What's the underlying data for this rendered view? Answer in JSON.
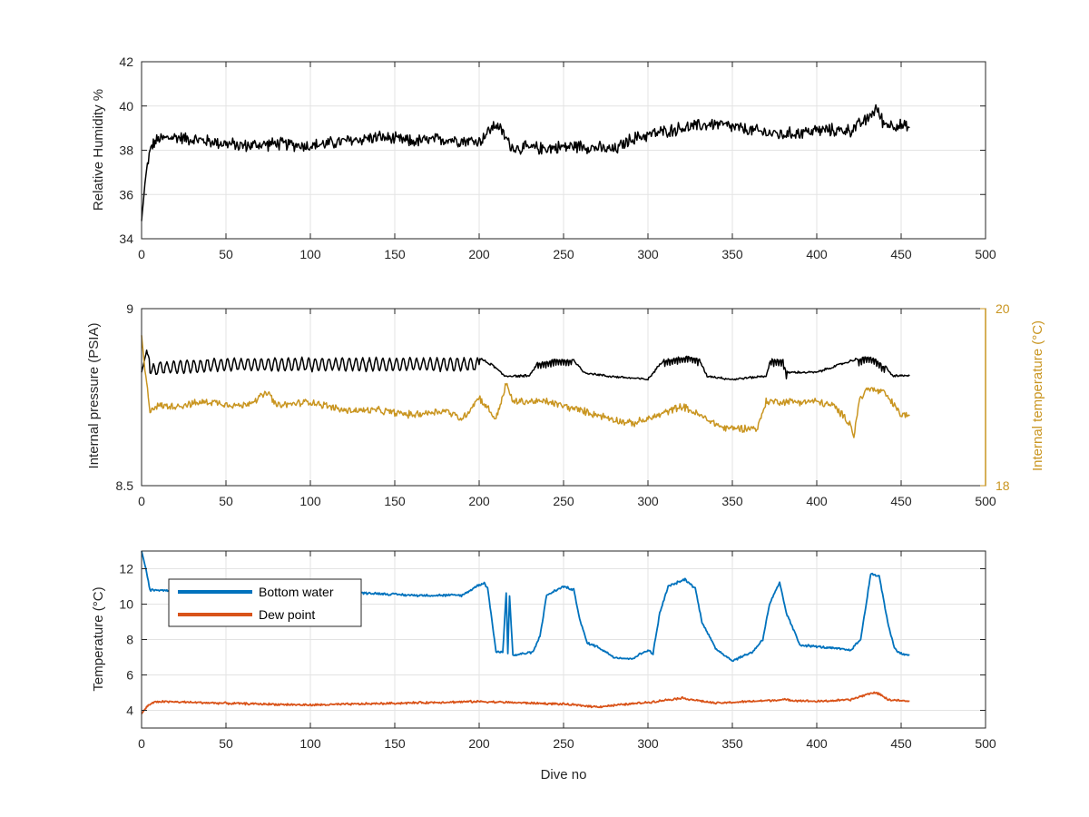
{
  "chart_data": [
    {
      "type": "line",
      "id": "humidity",
      "title": "",
      "xlabel": "",
      "ylabel": "Relative Humidity %",
      "xlim": [
        0,
        500
      ],
      "ylim": [
        34,
        42
      ],
      "xticks": [
        0,
        50,
        100,
        150,
        200,
        250,
        300,
        350,
        400,
        450,
        500
      ],
      "yticks": [
        34,
        36,
        38,
        40,
        42
      ],
      "grid": true,
      "series": [
        {
          "color": "#000000",
          "noise": 0.35,
          "x": [
            0,
            2,
            4,
            6,
            10,
            20,
            40,
            60,
            80,
            100,
            120,
            140,
            160,
            180,
            200,
            210,
            220,
            240,
            260,
            280,
            290,
            300,
            320,
            340,
            360,
            380,
            400,
            420,
            430,
            435,
            440,
            450,
            455
          ],
          "y": [
            34.8,
            36.5,
            37.6,
            38.2,
            38.5,
            38.6,
            38.4,
            38.2,
            38.3,
            38.2,
            38.4,
            38.6,
            38.4,
            38.5,
            38.4,
            39.2,
            38.1,
            38.1,
            38.2,
            38.0,
            38.5,
            38.7,
            39.0,
            39.2,
            38.9,
            38.7,
            38.9,
            38.9,
            39.4,
            39.9,
            39.2,
            39.1,
            39.0
          ]
        }
      ]
    },
    {
      "type": "line",
      "id": "pressure-temperature",
      "title": "",
      "xlabel": "",
      "ylabel": "Internal pressure (PSIA)",
      "ylabel_right": "Internal temperature (°C)",
      "xlim": [
        0,
        500
      ],
      "ylim": [
        8.5,
        9
      ],
      "ylim_right": [
        18,
        20
      ],
      "xticks": [
        0,
        50,
        100,
        150,
        200,
        250,
        300,
        350,
        400,
        450,
        500
      ],
      "yticks": [
        8.5,
        9
      ],
      "yticks_right": [
        18,
        20
      ],
      "grid": true,
      "series": [
        {
          "axis": "left",
          "color": "#000000",
          "noise": 0.004,
          "osc": [
            [
              5,
              200,
              0.035,
              4
            ],
            [
              235,
              255,
              0.02,
              1.5
            ],
            [
              310,
              330,
              0.02,
              1.5
            ],
            [
              373,
              382,
              0.02,
              1.5
            ],
            [
              425,
              440,
              0.02,
              1.5
            ]
          ],
          "x": [
            0,
            3,
            6,
            10,
            50,
            100,
            150,
            190,
            200,
            208,
            215,
            230,
            235,
            245,
            255,
            262,
            275,
            300,
            310,
            325,
            330,
            335,
            350,
            370,
            373,
            380,
            382,
            400,
            425,
            430,
            435,
            440,
            445,
            455
          ],
          "y": [
            8.82,
            8.88,
            8.84,
            8.85,
            8.86,
            8.86,
            8.86,
            8.86,
            8.86,
            8.84,
            8.81,
            8.81,
            8.85,
            8.86,
            8.86,
            8.82,
            8.81,
            8.8,
            8.86,
            8.87,
            8.86,
            8.81,
            8.8,
            8.81,
            8.86,
            8.86,
            8.82,
            8.82,
            8.86,
            8.87,
            8.86,
            8.84,
            8.81,
            8.81
          ]
        },
        {
          "axis": "right",
          "color": "#C99520",
          "noise": 0.05,
          "x": [
            0,
            2,
            5,
            8,
            20,
            40,
            60,
            75,
            80,
            100,
            120,
            140,
            160,
            180,
            190,
            200,
            210,
            216,
            220,
            240,
            260,
            270,
            290,
            300,
            320,
            330,
            345,
            350,
            360,
            365,
            370,
            380,
            400,
            410,
            420,
            422,
            425,
            430,
            440,
            450,
            455
          ],
          "y": [
            19.7,
            19.3,
            18.85,
            18.9,
            18.9,
            18.95,
            18.9,
            19.05,
            18.9,
            18.95,
            18.85,
            18.85,
            18.8,
            18.85,
            18.75,
            19.0,
            18.75,
            19.15,
            18.95,
            18.95,
            18.85,
            18.8,
            18.7,
            18.75,
            18.9,
            18.8,
            18.65,
            18.65,
            18.65,
            18.65,
            18.95,
            18.95,
            18.95,
            18.9,
            18.7,
            18.55,
            18.95,
            19.1,
            19.05,
            18.8,
            18.8
          ]
        }
      ]
    },
    {
      "type": "line",
      "id": "temperature",
      "title": "",
      "xlabel": "Dive no",
      "ylabel": "Temperature (°C)",
      "xlim": [
        0,
        500
      ],
      "ylim": [
        3,
        13
      ],
      "xticks": [
        0,
        50,
        100,
        150,
        200,
        250,
        300,
        350,
        400,
        450,
        500
      ],
      "yticks": [
        4,
        6,
        8,
        10,
        12
      ],
      "grid": true,
      "legend": {
        "position": "top-left",
        "entries": [
          "Bottom water",
          "Dew point"
        ]
      },
      "series": [
        {
          "name": "Bottom water",
          "color": "#0072BD",
          "noise": 0.08,
          "x": [
            0,
            2,
            5,
            8,
            20,
            60,
            100,
            140,
            160,
            190,
            200,
            203,
            205,
            207,
            210,
            214,
            216,
            217,
            218,
            220,
            232,
            236,
            240,
            250,
            256,
            260,
            264,
            270,
            280,
            290,
            300,
            303,
            307,
            312,
            322,
            328,
            332,
            340,
            350,
            362,
            368,
            372,
            378,
            382,
            390,
            400,
            420,
            426,
            432,
            437,
            442,
            446,
            450,
            455
          ],
          "y": [
            13.0,
            12.2,
            10.8,
            10.8,
            10.8,
            10.8,
            10.7,
            10.6,
            10.5,
            10.5,
            11.1,
            11.2,
            10.9,
            9.5,
            7.3,
            7.3,
            10.6,
            7.2,
            10.5,
            7.1,
            7.3,
            8.2,
            10.5,
            11.0,
            10.8,
            9.0,
            7.8,
            7.6,
            7.0,
            6.9,
            7.4,
            7.2,
            9.5,
            11.0,
            11.4,
            10.9,
            9.0,
            7.5,
            6.8,
            7.3,
            8.0,
            10.0,
            11.2,
            9.5,
            7.7,
            7.6,
            7.4,
            8.0,
            11.7,
            11.6,
            9.0,
            7.5,
            7.2,
            7.1
          ]
        },
        {
          "name": "Dew point",
          "color": "#D95319",
          "noise": 0.07,
          "x": [
            0,
            3,
            6,
            10,
            50,
            100,
            150,
            200,
            250,
            270,
            300,
            320,
            340,
            380,
            400,
            420,
            433,
            438,
            442,
            455
          ],
          "y": [
            3.8,
            4.2,
            4.4,
            4.5,
            4.4,
            4.3,
            4.4,
            4.5,
            4.35,
            4.2,
            4.45,
            4.7,
            4.4,
            4.6,
            4.5,
            4.6,
            5.0,
            4.9,
            4.6,
            4.5
          ]
        }
      ]
    }
  ]
}
